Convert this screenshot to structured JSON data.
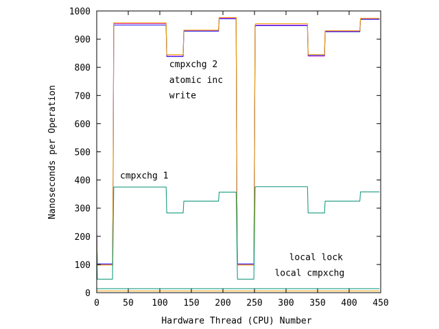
{
  "chart_data": {
    "type": "line",
    "title": "",
    "xlabel": "Hardware Thread (CPU) Number",
    "ylabel": "Nanoseconds per Operation",
    "xlim": [
      0,
      450
    ],
    "ylim": [
      0,
      1000
    ],
    "xticks": [
      0,
      50,
      100,
      150,
      200,
      250,
      300,
      350,
      400,
      450
    ],
    "yticks": [
      0,
      100,
      200,
      300,
      400,
      500,
      600,
      700,
      800,
      900,
      1000
    ],
    "grid": false,
    "legend": "none",
    "series": [
      {
        "name": "cmpxchg 2",
        "color": "#e32bcb",
        "x": [
          0,
          1,
          2,
          24,
          25,
          26,
          27,
          110,
          111,
          137,
          138,
          193,
          194,
          221,
          222,
          223,
          224,
          249,
          250,
          251,
          252,
          334,
          335,
          361,
          362,
          417,
          418,
          448
        ],
        "y": [
          210,
          100,
          100,
          100,
          100,
          380,
          955,
          955,
          840,
          840,
          930,
          930,
          975,
          975,
          400,
          100,
          100,
          100,
          480,
          940,
          950,
          950,
          840,
          840,
          928,
          928,
          972,
          972
        ]
      },
      {
        "name": "atomic inc",
        "color": "#3333ee",
        "x": [
          0,
          1,
          2,
          24,
          25,
          26,
          27,
          110,
          111,
          137,
          138,
          193,
          194,
          221,
          222,
          223,
          224,
          249,
          250,
          251,
          252,
          334,
          335,
          361,
          362,
          417,
          418,
          448
        ],
        "y": [
          200,
          102,
          102,
          102,
          102,
          380,
          950,
          950,
          838,
          838,
          928,
          928,
          972,
          972,
          400,
          102,
          102,
          102,
          480,
          945,
          948,
          948,
          842,
          842,
          926,
          926,
          970,
          970
        ]
      },
      {
        "name": "write",
        "color": "#e8a008",
        "x": [
          0,
          1,
          2,
          24,
          25,
          26,
          27,
          110,
          111,
          137,
          138,
          193,
          194,
          221,
          222,
          223,
          224,
          249,
          250,
          251,
          252,
          334,
          335,
          361,
          362,
          417,
          418,
          448
        ],
        "y": [
          190,
          98,
          98,
          98,
          98,
          380,
          958,
          958,
          845,
          845,
          932,
          932,
          977,
          977,
          400,
          98,
          98,
          98,
          480,
          950,
          955,
          955,
          845,
          845,
          930,
          930,
          974,
          974
        ]
      },
      {
        "name": "cmpxchg 1",
        "color": "#199b80",
        "x": [
          0,
          1,
          2,
          24,
          25,
          26,
          27,
          110,
          111,
          137,
          138,
          193,
          194,
          221,
          222,
          223,
          224,
          249,
          250,
          251,
          252,
          334,
          335,
          361,
          362,
          417,
          418,
          448
        ],
        "y": [
          160,
          48,
          48,
          48,
          48,
          200,
          375,
          375,
          283,
          283,
          325,
          325,
          357,
          357,
          200,
          48,
          48,
          48,
          200,
          375,
          376,
          376,
          283,
          283,
          325,
          325,
          358,
          358
        ]
      },
      {
        "name": "local lock",
        "color": "#199b80",
        "x": [
          0,
          448
        ],
        "y": [
          14,
          14
        ]
      },
      {
        "name": "local cmpxchg",
        "color": "#e8a008",
        "x": [
          0,
          448
        ],
        "y": [
          6,
          6
        ]
      }
    ],
    "annotations": [
      {
        "text": "cmpxchg 2",
        "x": 115,
        "y": 800
      },
      {
        "text": "atomic inc",
        "x": 115,
        "y": 745
      },
      {
        "text": "write",
        "x": 115,
        "y": 690
      },
      {
        "text": "cmpxchg 1",
        "x": 37,
        "y": 405
      },
      {
        "text": "local lock",
        "x": 305,
        "y": 115
      },
      {
        "text": "local cmpxchg",
        "x": 282,
        "y": 60
      }
    ]
  }
}
